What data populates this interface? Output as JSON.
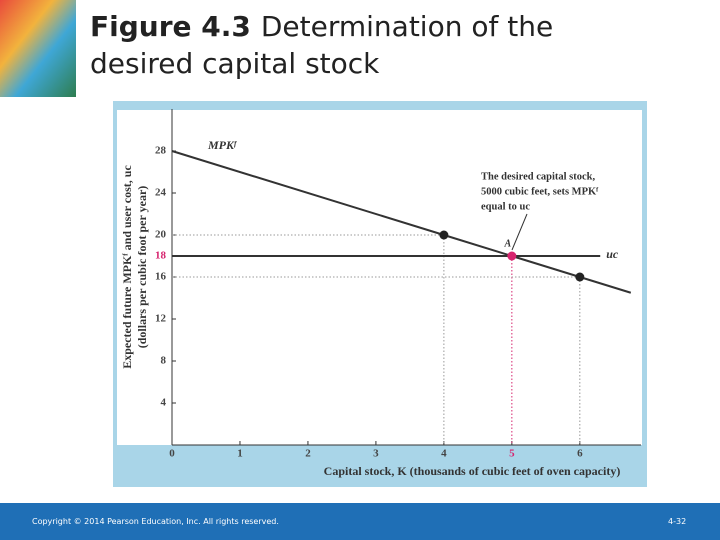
{
  "title_label": "Figure 4.3",
  "title": "Determination of the desired capital stock",
  "footer": {
    "copyright": "Copyright © 2014 Pearson Education, Inc. All rights reserved.",
    "page": "4-32"
  },
  "chart_data": {
    "type": "line",
    "xlabel": "Capital stock, K (thousands of cubic feet of oven capacity)",
    "ylabel": [
      "Expected future MPKᶠ and user cost, uc",
      "(dollars per cubic foot per year)"
    ],
    "xlim": [
      0,
      6.9
    ],
    "ylim": [
      0,
      32
    ],
    "xticks": [
      0,
      1,
      2,
      3,
      4,
      5,
      6
    ],
    "yticks": [
      4,
      8,
      12,
      16,
      18,
      20,
      24,
      28
    ],
    "series": [
      {
        "name": "MPKᶠ",
        "color": "#333333",
        "x": [
          0,
          4,
          5,
          6,
          6.75
        ],
        "values": [
          28,
          20,
          18,
          16,
          14.5
        ]
      },
      {
        "name": "uc",
        "color": "#333333",
        "x": [
          0,
          6.3
        ],
        "values": [
          18,
          18
        ]
      }
    ],
    "points": {
      "x": [
        4,
        5,
        6
      ],
      "values": [
        20,
        18,
        16
      ],
      "colors": [
        "#222222",
        "#d6246e",
        "#222222"
      ],
      "labels": [
        null,
        "A",
        null
      ]
    },
    "annotation": [
      "The desired capital stock,",
      "5000 cubic feet, sets MPKᶠ",
      "equal to uc"
    ]
  }
}
